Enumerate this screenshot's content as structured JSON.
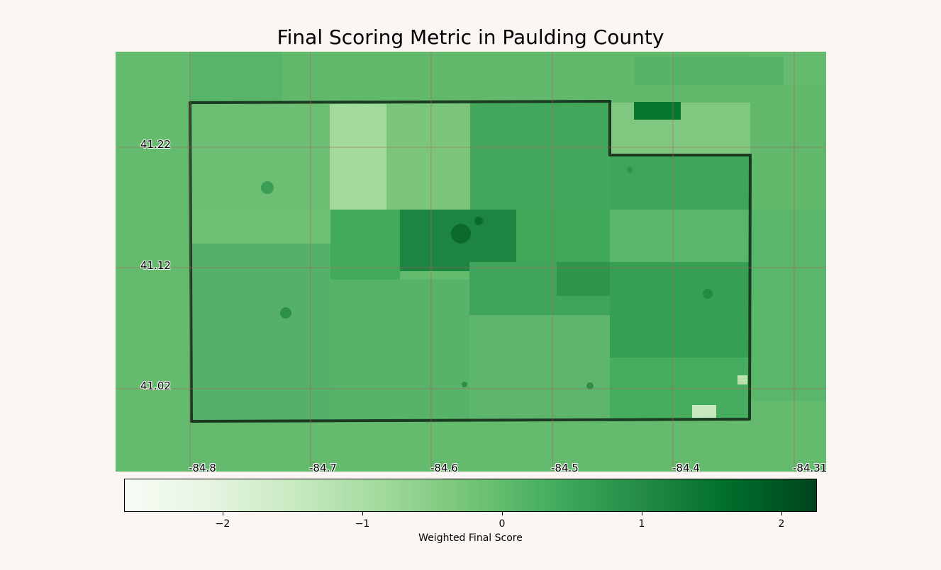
{
  "title": "Final Scoring Metric in Paulding County",
  "lat_labels": [
    "41.22",
    "41.12",
    "41.02"
  ],
  "lon_labels": [
    "-84.8",
    "-84.7",
    "-84.6",
    "-84.5",
    "-84.4",
    "-84.31"
  ],
  "colorbar": {
    "label": "Weighted Final Score",
    "ticks": [
      "−2",
      "−1",
      "0",
      "1",
      "2"
    ],
    "colormap": "Greens",
    "range": [
      -2.7,
      2.27
    ],
    "colors": [
      "#f7fcf5",
      "#e5f5e0",
      "#c7e9c0",
      "#a1d99b",
      "#74c476",
      "#41ab5d",
      "#238b45",
      "#006d2c",
      "#00441b"
    ]
  },
  "chart_data": {
    "type": "heatmap",
    "title": "Final Scoring Metric in Paulding County",
    "colorbar_label": "Weighted Final Score",
    "xticks": [
      "-84.8",
      "-84.7",
      "-84.6",
      "-84.5",
      "-84.4",
      "-84.31"
    ],
    "yticks": [
      "41.22",
      "41.12",
      "41.02"
    ]
  }
}
